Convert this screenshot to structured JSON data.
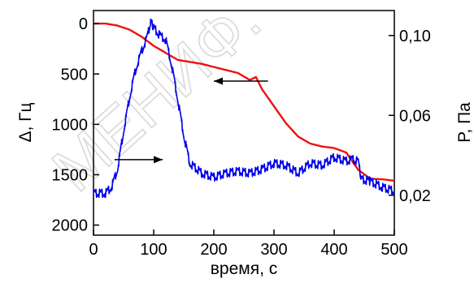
{
  "chart_data": {
    "type": "line",
    "xlabel": "время, с",
    "ylabel_left": "Δ, Гц",
    "ylabel_right": "P, Па",
    "xlim": [
      0,
      500
    ],
    "ylim_left": [
      2100,
      -130
    ],
    "ylim_right": [
      0.0,
      0.1125
    ],
    "left_axis_inverted": true,
    "x_ticks": [
      0,
      100,
      200,
      300,
      400,
      500
    ],
    "y_left_ticks": [
      0,
      500,
      1000,
      1500,
      2000
    ],
    "y_right_ticks": [
      "0,10",
      "0,06",
      "0,02"
    ],
    "y_right_tick_values": [
      0.1,
      0.06,
      0.02
    ],
    "grid": false,
    "series": [
      {
        "axis": "left",
        "color": "#ee1111",
        "x": [
          0,
          20,
          40,
          60,
          80,
          100,
          120,
          140,
          160,
          180,
          200,
          220,
          240,
          260,
          270,
          280,
          300,
          320,
          340,
          360,
          380,
          400,
          420,
          440,
          460,
          480,
          500
        ],
        "y": [
          0,
          0,
          20,
          60,
          130,
          220,
          290,
          360,
          380,
          400,
          430,
          460,
          490,
          560,
          530,
          650,
          820,
          990,
          1120,
          1190,
          1220,
          1235,
          1280,
          1450,
          1540,
          1545,
          1560
        ]
      },
      {
        "axis": "right",
        "color": "#0000ee",
        "x": [
          0,
          20,
          30,
          40,
          50,
          60,
          70,
          80,
          90,
          95,
          100,
          110,
          120,
          130,
          140,
          150,
          160,
          180,
          200,
          220,
          240,
          260,
          280,
          300,
          320,
          340,
          360,
          380,
          400,
          420,
          430,
          440,
          445,
          460,
          480,
          500
        ],
        "y": [
          0.021,
          0.021,
          0.024,
          0.033,
          0.052,
          0.069,
          0.083,
          0.092,
          0.1,
          0.107,
          0.104,
          0.1,
          0.098,
          0.085,
          0.068,
          0.05,
          0.036,
          0.031,
          0.029,
          0.031,
          0.032,
          0.031,
          0.033,
          0.036,
          0.035,
          0.031,
          0.036,
          0.035,
          0.039,
          0.037,
          0.038,
          0.037,
          0.028,
          0.027,
          0.024,
          0.022
        ]
      }
    ],
    "annotations": [
      {
        "type": "arrow",
        "direction": "left",
        "from_x": 290,
        "to_x": 200,
        "y_axis": "left",
        "y": 570
      },
      {
        "type": "arrow",
        "direction": "right",
        "from_x": 35,
        "to_x": 115,
        "y_axis": "left",
        "y": 1350
      }
    ]
  }
}
